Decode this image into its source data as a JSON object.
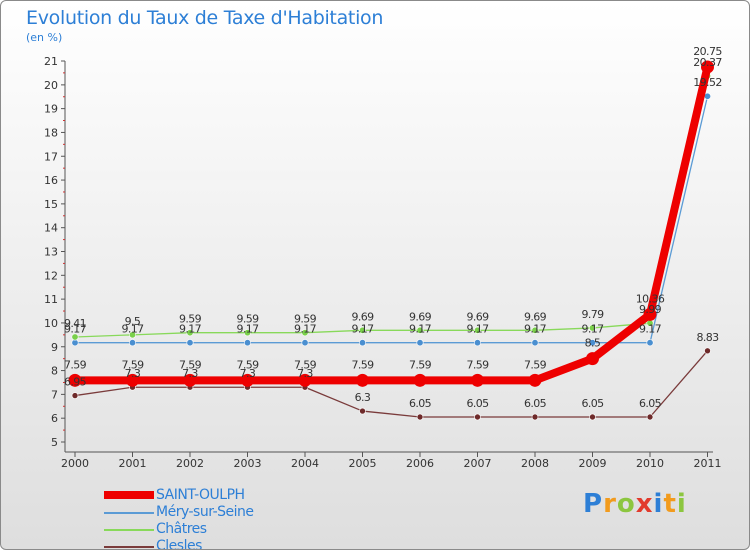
{
  "chart_data": {
    "type": "line",
    "title": "Evolution du Taux de Taxe d'Habitation",
    "subtitle": "(en %)",
    "x": [
      "2000",
      "2001",
      "2002",
      "2003",
      "2004",
      "2005",
      "2006",
      "2007",
      "2008",
      "2009",
      "2010",
      "2011"
    ],
    "ylim": [
      5,
      21
    ],
    "yticks": [
      "5",
      "6",
      "7",
      "8",
      "9",
      "10",
      "11",
      "12",
      "13",
      "14",
      "15",
      "16",
      "17",
      "18",
      "19",
      "20",
      "21"
    ],
    "series": [
      {
        "name": "SAINT-OULPH",
        "color": "#ee0000",
        "values": [
          7.59,
          7.59,
          7.59,
          7.59,
          7.59,
          7.59,
          7.59,
          7.59,
          7.59,
          8.5,
          10.36,
          20.75
        ],
        "labels": [
          "7.59",
          "7.59",
          "7.59",
          "7.59",
          "7.59",
          "7.59",
          "7.59",
          "7.59",
          "7.59",
          "8.5",
          "10.36",
          "20.75"
        ]
      },
      {
        "name": "Méry-sur-Seine",
        "color": "#5b9bd5",
        "values": [
          9.17,
          9.17,
          9.17,
          9.17,
          9.17,
          9.17,
          9.17,
          9.17,
          9.17,
          9.17,
          9.17,
          19.52
        ],
        "labels": [
          "9.17",
          "9.17",
          "9.17",
          "9.17",
          "9.17",
          "9.17",
          "9.17",
          "9.17",
          "9.17",
          "9.17",
          "9.17",
          "19.52"
        ]
      },
      {
        "name": "Châtres",
        "color": "#88d95a",
        "values": [
          9.41,
          9.5,
          9.59,
          9.59,
          9.59,
          9.69,
          9.69,
          9.69,
          9.69,
          9.79,
          9.99,
          20.37
        ],
        "labels": [
          "9.41",
          "9.5",
          "9.59",
          "9.59",
          "9.59",
          "9.69",
          "9.69",
          "9.69",
          "9.69",
          "9.79",
          "9.99",
          "20.37"
        ]
      },
      {
        "name": "Clesles",
        "color": "#7a3b3b",
        "values": [
          6.95,
          7.3,
          7.3,
          7.3,
          7.3,
          6.3,
          6.05,
          6.05,
          6.05,
          6.05,
          6.05,
          8.83
        ],
        "labels": [
          "6.95",
          "7.3",
          "7.3",
          "7.3",
          "7.3",
          "6.3",
          "6.05",
          "6.05",
          "6.05",
          "6.05",
          "6.05",
          "8.83"
        ]
      }
    ]
  },
  "brand": {
    "p": "P",
    "r": "r",
    "o": "o",
    "x": "x",
    "i": "i",
    "t": "t",
    "i2": "i"
  }
}
